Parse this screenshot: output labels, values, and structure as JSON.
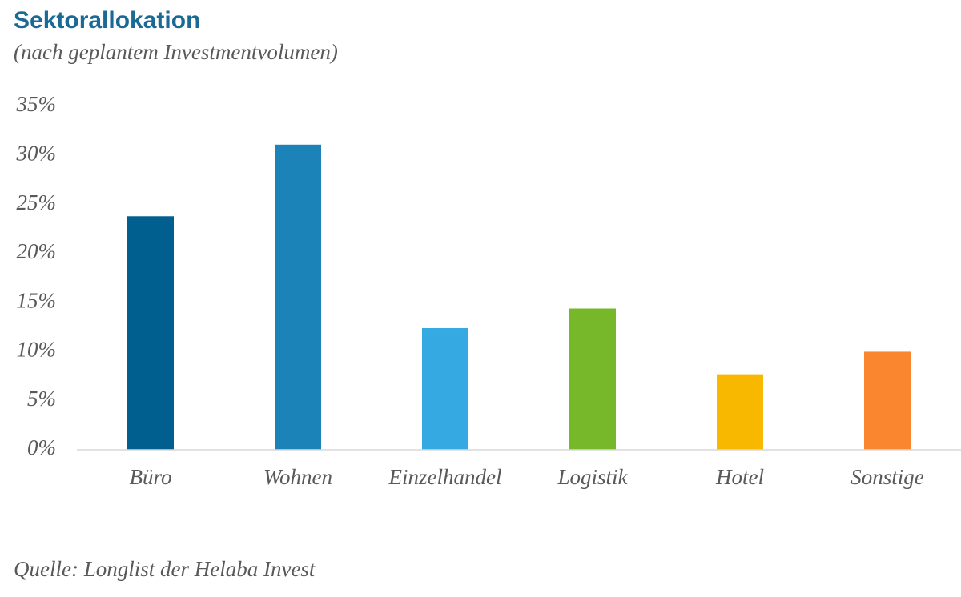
{
  "chart_data": {
    "type": "bar",
    "title": "Sektorallokation",
    "subtitle": "(nach geplantem Investmentvolumen)",
    "source": "Quelle: Longlist der Helaba Invest",
    "categories": [
      "Büro",
      "Wohnen",
      "Einzelhandel",
      "Logistik",
      "Hotel",
      "Sonstige"
    ],
    "values": [
      23.8,
      31.1,
      12.4,
      14.4,
      7.7,
      10.0
    ],
    "colors": [
      "#005f8f",
      "#1b83b8",
      "#35a9e1",
      "#77b82a",
      "#f8b800",
      "#fa8630"
    ],
    "ylim": [
      0,
      35
    ],
    "yticks": [
      {
        "value": 0,
        "label": "0%"
      },
      {
        "value": 5,
        "label": "5%"
      },
      {
        "value": 10,
        "label": "10%"
      },
      {
        "value": 15,
        "label": "15%"
      },
      {
        "value": 20,
        "label": "20%"
      },
      {
        "value": 25,
        "label": "25%"
      },
      {
        "value": 30,
        "label": "30%"
      },
      {
        "value": 35,
        "label": "35%"
      }
    ],
    "grid": false
  }
}
